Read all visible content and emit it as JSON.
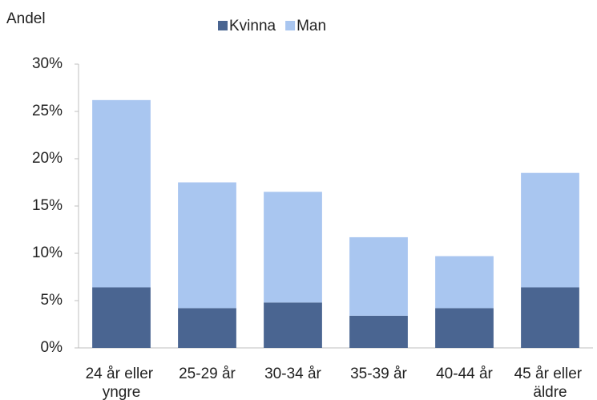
{
  "chart_data": {
    "type": "stacked_bar",
    "y_label": "Andel",
    "categories": [
      "24 år eller yngre",
      "25-29 år",
      "30-34 år",
      "35-39 år",
      "40-44 år",
      "45 år eller äldre"
    ],
    "series": [
      {
        "name": "Kvinna",
        "color": "#4a6591",
        "values": [
          6.4,
          4.2,
          4.8,
          3.4,
          4.2,
          6.4
        ]
      },
      {
        "name": "Man",
        "color": "#a9c6f0",
        "values": [
          19.8,
          13.3,
          11.7,
          8.3,
          5.5,
          12.1
        ]
      }
    ],
    "ylim": [
      0,
      30
    ],
    "yticks": [
      {
        "value": 0,
        "label": "0%"
      },
      {
        "value": 5,
        "label": "5%"
      },
      {
        "value": 10,
        "label": "10%"
      },
      {
        "value": 15,
        "label": "15%"
      },
      {
        "value": 20,
        "label": "20%"
      },
      {
        "value": 25,
        "label": "25%"
      },
      {
        "value": 30,
        "label": "30%"
      }
    ],
    "legend": "top"
  }
}
